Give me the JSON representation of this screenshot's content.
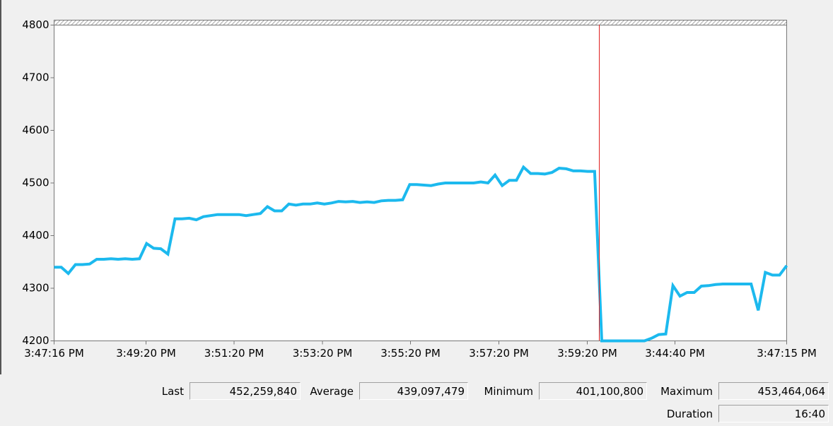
{
  "chart_data": {
    "type": "line",
    "ylim": [
      4200,
      4800
    ],
    "yticks": [
      4200,
      4300,
      4400,
      4500,
      4600,
      4700,
      4800
    ],
    "xtick_labels": [
      "3:47:16 PM",
      "3:49:20 PM",
      "3:51:20 PM",
      "3:53:20 PM",
      "3:55:20 PM",
      "3:57:20 PM",
      "3:59:20 PM",
      "3:44:40 PM",
      "3:47:15 PM"
    ],
    "series": [
      {
        "color": "#1cb9ee",
        "values": [
          4340,
          4340,
          4328,
          4345,
          4345,
          4346,
          4355,
          4355,
          4356,
          4355,
          4356,
          4355,
          4356,
          4385,
          4376,
          4375,
          4365,
          4432,
          4432,
          4433,
          4430,
          4436,
          4438,
          4440,
          4440,
          4440,
          4440,
          4438,
          4440,
          4442,
          4455,
          4447,
          4447,
          4460,
          4458,
          4460,
          4460,
          4462,
          4460,
          4462,
          4465,
          4464,
          4465,
          4463,
          4464,
          4463,
          4466,
          4467,
          4467,
          4468,
          4497,
          4497,
          4496,
          4495,
          4498,
          4500,
          4500,
          4500,
          4500,
          4500,
          4502,
          4500,
          4515,
          4495,
          4505,
          4505,
          4530,
          4518,
          4518,
          4517,
          4520,
          4528,
          4527,
          4523,
          4523,
          4522,
          4522,
          4200,
          4200,
          4200,
          4200,
          4200,
          4200,
          4200,
          4205,
          4212,
          4213,
          4305,
          4285,
          4292,
          4292,
          4304,
          4305,
          4307,
          4308,
          4308,
          4308,
          4308,
          4308,
          4258,
          4330,
          4325,
          4325,
          4343
        ]
      }
    ]
  },
  "stats": [
    {
      "label": "Last",
      "value": "452,259,840"
    },
    {
      "label": "Average",
      "value": "439,097,479"
    },
    {
      "label": "Minimum",
      "value": "401,100,800"
    },
    {
      "label": "Maximum",
      "value": "453,464,064"
    },
    {
      "label": "Duration",
      "value": "16:40"
    }
  ]
}
